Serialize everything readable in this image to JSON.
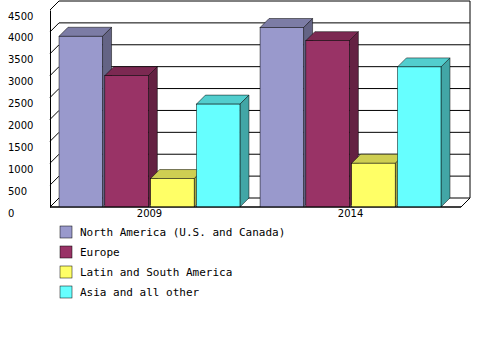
{
  "chart_data": {
    "type": "bar",
    "categories": [
      "2009",
      "2014"
    ],
    "series": [
      {
        "name": "North America (U.S. and Canada)",
        "color": "#9999cc",
        "values": [
          3900,
          4100
        ]
      },
      {
        "name": "Europe",
        "color": "#993366",
        "values": [
          3000,
          3800
        ]
      },
      {
        "name": "Latin and South America",
        "color": "#ffff66",
        "values": [
          650,
          1000
        ]
      },
      {
        "name": "Asia and all other",
        "color": "#66ffff",
        "values": [
          2350,
          3200
        ]
      }
    ],
    "ylim": [
      0,
      4500
    ],
    "yticks": [
      0,
      500,
      1000,
      1500,
      2000,
      2500,
      3000,
      3500,
      4000,
      4500
    ],
    "grid": true
  }
}
